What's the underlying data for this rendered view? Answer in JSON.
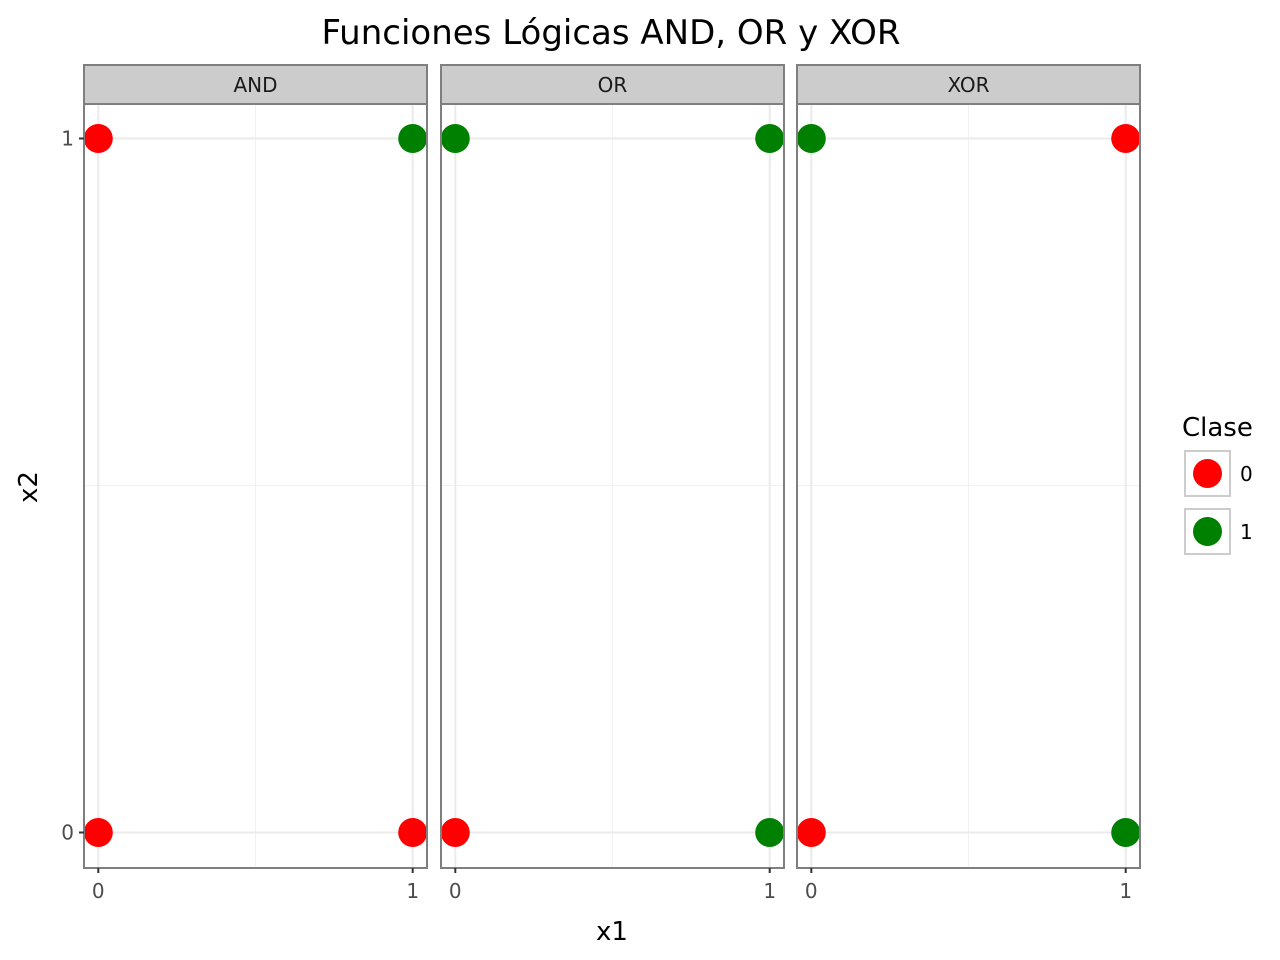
{
  "chart_data": {
    "type": "scatter",
    "title": "Funciones Lógicas AND, OR y XOR",
    "xlabel": "x1",
    "ylabel": "x2",
    "xlim": [
      0,
      1
    ],
    "ylim": [
      0,
      1
    ],
    "x_ticks": [
      "0",
      "1"
    ],
    "y_ticks": [
      "0",
      "1"
    ],
    "grid": true,
    "legend": {
      "title": "Clase",
      "position": "right",
      "entries": [
        {
          "label": "0",
          "color": "#ff0000"
        },
        {
          "label": "1",
          "color": "#008000"
        }
      ]
    },
    "facets": [
      {
        "label": "AND",
        "points": [
          {
            "x1": 0,
            "x2": 0,
            "clase": "0"
          },
          {
            "x1": 0,
            "x2": 1,
            "clase": "0"
          },
          {
            "x1": 1,
            "x2": 0,
            "clase": "0"
          },
          {
            "x1": 1,
            "x2": 1,
            "clase": "1"
          }
        ]
      },
      {
        "label": "OR",
        "points": [
          {
            "x1": 0,
            "x2": 0,
            "clase": "0"
          },
          {
            "x1": 0,
            "x2": 1,
            "clase": "1"
          },
          {
            "x1": 1,
            "x2": 0,
            "clase": "1"
          },
          {
            "x1": 1,
            "x2": 1,
            "clase": "1"
          }
        ]
      },
      {
        "label": "XOR",
        "points": [
          {
            "x1": 0,
            "x2": 0,
            "clase": "0"
          },
          {
            "x1": 0,
            "x2": 1,
            "clase": "1"
          },
          {
            "x1": 1,
            "x2": 0,
            "clase": "1"
          },
          {
            "x1": 1,
            "x2": 1,
            "clase": "0"
          }
        ]
      }
    ]
  }
}
